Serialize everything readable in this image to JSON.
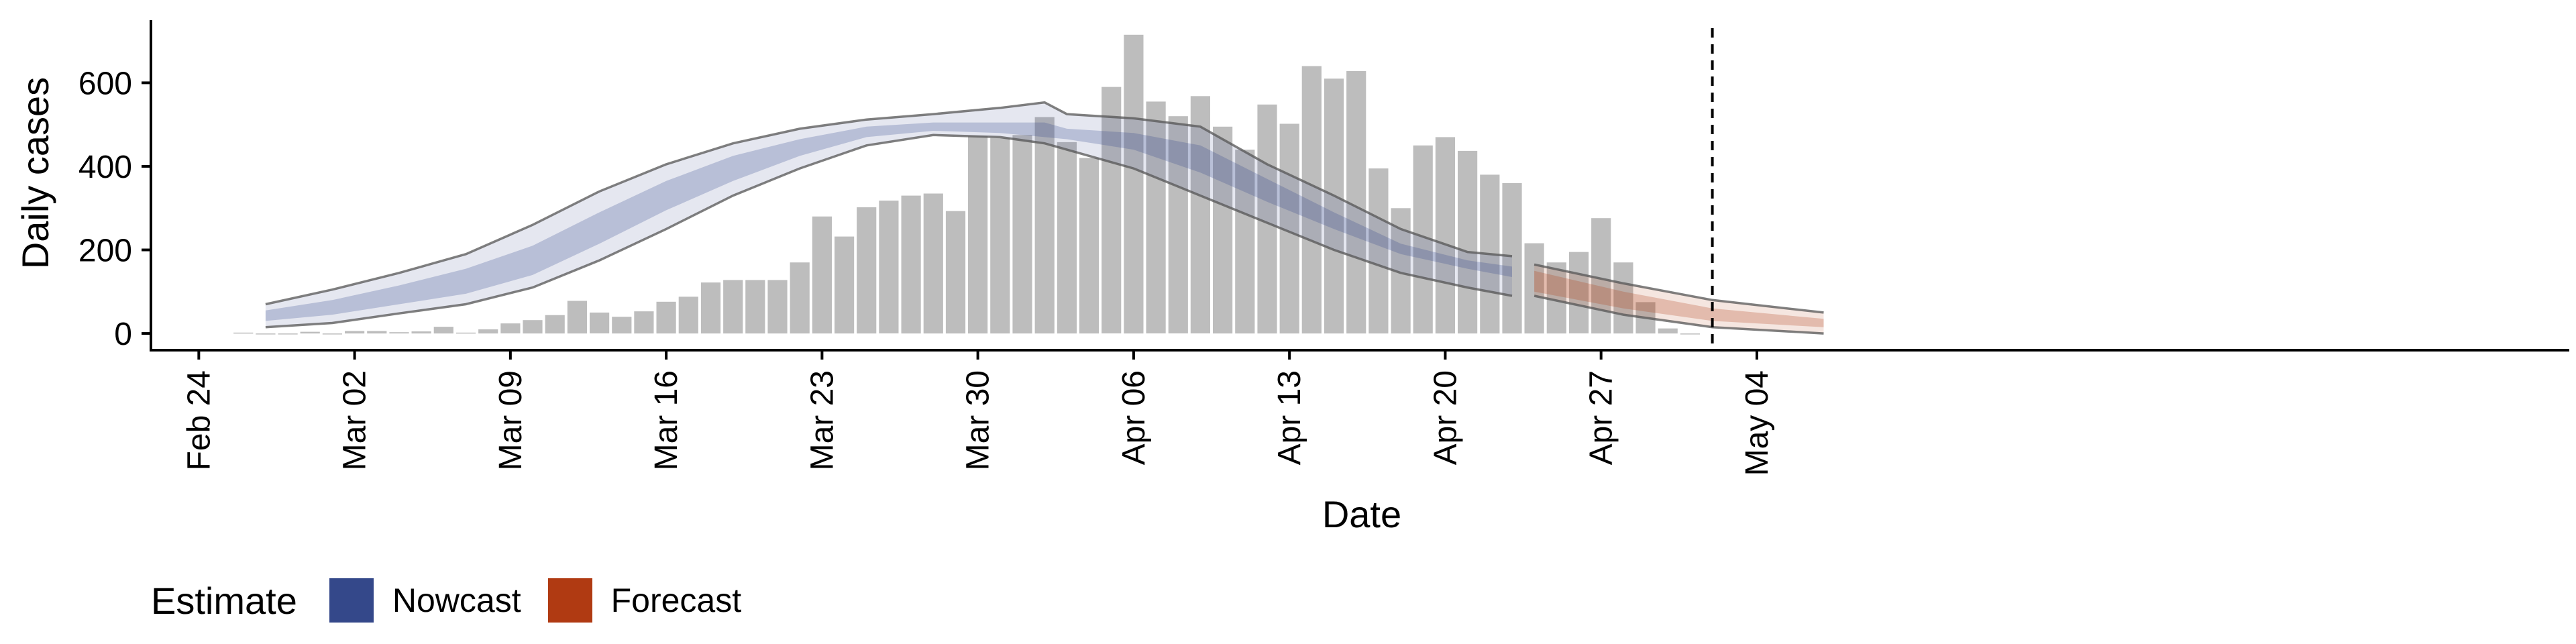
{
  "chart_data": {
    "type": "bar",
    "title": "",
    "xlabel": "Date",
    "ylabel": "Daily cases",
    "x_tick_labels": [
      "Feb 24",
      "Mar 02",
      "Mar 09",
      "Mar 16",
      "Mar 23",
      "Mar 30",
      "Apr 06",
      "Apr 13",
      "Apr 20",
      "Apr 27",
      "May 04"
    ],
    "y_tick_labels": [
      "0",
      "200",
      "400",
      "600"
    ],
    "ylim": [
      -40,
      750
    ],
    "xlim": [
      "2020-02-23",
      "2020-05-08"
    ],
    "legend": {
      "title": "Estimate",
      "position": "bottom-left",
      "items": [
        {
          "label": "Nowcast",
          "color": "#34488a"
        },
        {
          "label": "Forecast",
          "color": "#b03a12"
        }
      ]
    },
    "forecast_start_marker": "2020-05-02",
    "bar_color": "#bdbdbd",
    "bars": {
      "dates": [
        "2020-02-26",
        "2020-02-27",
        "2020-02-28",
        "2020-02-29",
        "2020-03-01",
        "2020-03-02",
        "2020-03-03",
        "2020-03-04",
        "2020-03-05",
        "2020-03-06",
        "2020-03-07",
        "2020-03-08",
        "2020-03-09",
        "2020-03-10",
        "2020-03-11",
        "2020-03-12",
        "2020-03-13",
        "2020-03-14",
        "2020-03-15",
        "2020-03-16",
        "2020-03-17",
        "2020-03-18",
        "2020-03-19",
        "2020-03-20",
        "2020-03-21",
        "2020-03-22",
        "2020-03-23",
        "2020-03-24",
        "2020-03-25",
        "2020-03-26",
        "2020-03-27",
        "2020-03-28",
        "2020-03-29",
        "2020-03-30",
        "2020-03-31",
        "2020-04-01",
        "2020-04-02",
        "2020-04-03",
        "2020-04-04",
        "2020-04-05",
        "2020-04-06",
        "2020-04-07",
        "2020-04-08",
        "2020-04-09",
        "2020-04-10",
        "2020-04-11",
        "2020-04-12",
        "2020-04-13",
        "2020-04-14",
        "2020-04-15",
        "2020-04-16",
        "2020-04-17",
        "2020-04-18",
        "2020-04-19",
        "2020-04-20",
        "2020-04-21",
        "2020-04-22",
        "2020-04-23",
        "2020-04-24",
        "2020-04-25",
        "2020-04-26",
        "2020-04-27",
        "2020-04-28",
        "2020-04-29",
        "2020-04-30",
        "2020-05-01"
      ],
      "values": [
        2,
        0,
        0,
        4,
        0,
        6,
        6,
        3,
        5,
        16,
        2,
        10,
        24,
        32,
        44,
        78,
        50,
        40,
        53,
        76,
        88,
        122,
        128,
        128,
        128,
        170,
        280,
        232,
        302,
        318,
        330,
        335,
        293,
        472,
        468,
        475,
        518,
        458,
        420,
        590,
        715,
        555,
        520,
        568,
        495,
        440,
        548,
        502,
        640,
        610,
        628,
        395,
        300,
        450,
        470,
        437,
        380,
        360,
        216,
        170,
        195,
        276,
        170,
        75,
        12,
        0
      ]
    },
    "nowcast": {
      "dates": [
        "2020-02-27",
        "2020-03-01",
        "2020-03-04",
        "2020-03-07",
        "2020-03-10",
        "2020-03-13",
        "2020-03-16",
        "2020-03-19",
        "2020-03-22",
        "2020-03-25",
        "2020-03-28",
        "2020-03-31",
        "2020-04-02",
        "2020-04-03",
        "2020-04-06",
        "2020-04-09",
        "2020-04-12",
        "2020-04-15",
        "2020-04-18",
        "2020-04-21",
        "2020-04-23"
      ],
      "lower_90": [
        15,
        25,
        48,
        70,
        110,
        175,
        250,
        330,
        395,
        450,
        475,
        470,
        455,
        440,
        395,
        330,
        265,
        200,
        145,
        110,
        90
      ],
      "upper_90": [
        70,
        105,
        145,
        190,
        260,
        340,
        405,
        455,
        490,
        512,
        525,
        540,
        553,
        525,
        515,
        495,
        405,
        330,
        250,
        195,
        185
      ],
      "lower_50": [
        30,
        45,
        70,
        95,
        140,
        215,
        295,
        365,
        425,
        470,
        485,
        480,
        470,
        465,
        440,
        385,
        315,
        250,
        190,
        155,
        135
      ],
      "upper_50": [
        55,
        80,
        115,
        155,
        210,
        290,
        365,
        425,
        465,
        495,
        505,
        505,
        505,
        490,
        480,
        450,
        370,
        290,
        215,
        175,
        160
      ]
    },
    "forecast": {
      "dates": [
        "2020-04-24",
        "2020-04-28",
        "2020-05-02",
        "2020-05-07"
      ],
      "lower_90": [
        90,
        45,
        15,
        0
      ],
      "upper_90": [
        165,
        120,
        80,
        50
      ],
      "lower_50": [
        100,
        60,
        30,
        15
      ],
      "upper_50": [
        150,
        100,
        60,
        35
      ]
    }
  }
}
